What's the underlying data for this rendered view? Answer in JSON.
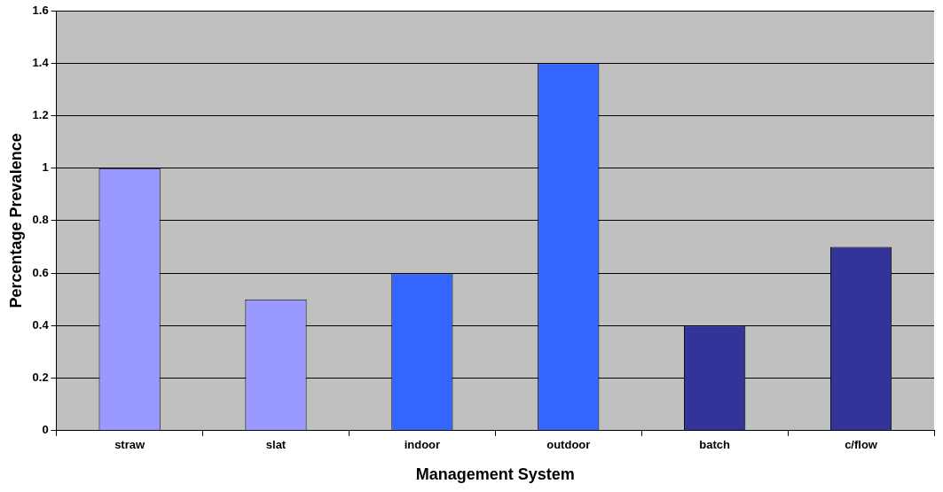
{
  "chart_data": {
    "type": "bar",
    "xlabel": "Management System",
    "ylabel": "Percentage Prevalence",
    "categories": [
      "straw",
      "slat",
      "indoor",
      "outdoor",
      "batch",
      "c/flow"
    ],
    "values": [
      1.0,
      0.5,
      0.6,
      1.4,
      0.4,
      0.7
    ],
    "colors": [
      "#9999ff",
      "#9999ff",
      "#3366ff",
      "#3366ff",
      "#333399",
      "#333399"
    ],
    "ylim": [
      0,
      1.6
    ],
    "yticks": [
      0,
      0.2,
      0.4,
      0.6,
      0.8,
      1,
      1.2,
      1.4,
      1.6
    ],
    "grid": "y",
    "legend": false
  }
}
